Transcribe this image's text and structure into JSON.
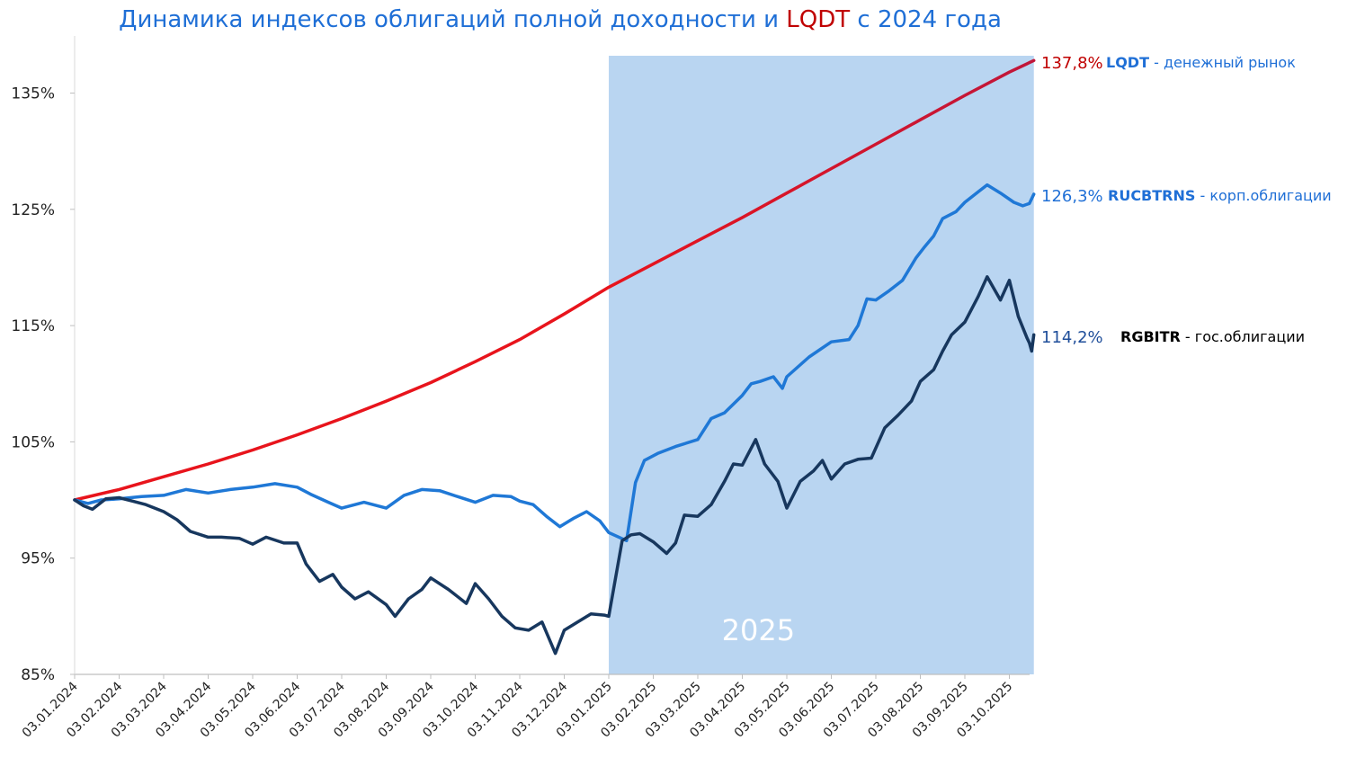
{
  "chart_data": {
    "type": "line",
    "title_parts": [
      {
        "text": "Динамика индексов облигаций полной доходности и ",
        "color": "#1f6fd6"
      },
      {
        "text": "LQDT",
        "color": "#c00000"
      },
      {
        "text": " с 2024 года",
        "color": "#1f6fd6"
      }
    ],
    "y_axis": {
      "min": 85,
      "max": 140,
      "ticks": [
        85,
        95,
        105,
        115,
        125,
        135
      ],
      "tick_labels": [
        "85%",
        "95%",
        "105%",
        "115%",
        "125%",
        "135%"
      ]
    },
    "x_axis": {
      "tick_labels": [
        "03.01.2024",
        "03.02.2024",
        "03.03.2024",
        "03.04.2024",
        "03.05.2024",
        "03.06.2024",
        "03.07.2024",
        "03.08.2024",
        "03.09.2024",
        "03.10.2024",
        "03.11.2024",
        "03.12.2024",
        "03.01.2025",
        "03.02.2025",
        "03.03.2025",
        "03.04.2025",
        "03.05.2025",
        "03.06.2025",
        "03.07.2025",
        "03.08.2025",
        "03.09.2025",
        "03.10.2025"
      ]
    },
    "highlight": {
      "from_index": 12,
      "to_index": 21.55,
      "label": "2025",
      "color": "#b9d5f1"
    },
    "series": [
      {
        "name": "LQDT",
        "color": "#e8141c",
        "color_end": "#c0163a",
        "end_value_label": "137,8%",
        "label_name": "LQDT",
        "label_desc": " - денежный рынок",
        "label_value_color": "#c00000",
        "label_name_color": "#1f6fd6",
        "points": [
          [
            0,
            100
          ],
          [
            1,
            100.9
          ],
          [
            2,
            102.0
          ],
          [
            3,
            103.1
          ],
          [
            4,
            104.3
          ],
          [
            5,
            105.6
          ],
          [
            6,
            107.0
          ],
          [
            7,
            108.5
          ],
          [
            8,
            110.1
          ],
          [
            9,
            111.9
          ],
          [
            10,
            113.8
          ],
          [
            11,
            116.0
          ],
          [
            12,
            118.3
          ],
          [
            13,
            120.3
          ],
          [
            14,
            122.3
          ],
          [
            15,
            124.3
          ],
          [
            16,
            126.4
          ],
          [
            17,
            128.5
          ],
          [
            18,
            130.6
          ],
          [
            19,
            132.7
          ],
          [
            20,
            134.8
          ],
          [
            21,
            136.8
          ],
          [
            21.55,
            137.8
          ]
        ]
      },
      {
        "name": "RUCBTRNS",
        "color": "#1f78d6",
        "end_value_label": "126,3%",
        "label_name": "RUCBTRNS",
        "label_desc": " - корп.облигации",
        "label_value_color": "#1f6fd6",
        "label_name_color": "#1f6fd6",
        "points": [
          [
            0,
            100
          ],
          [
            0.3,
            99.7
          ],
          [
            0.6,
            100.0
          ],
          [
            1,
            100.1
          ],
          [
            1.5,
            100.3
          ],
          [
            2,
            100.4
          ],
          [
            2.5,
            100.9
          ],
          [
            3,
            100.6
          ],
          [
            3.5,
            100.9
          ],
          [
            4,
            101.1
          ],
          [
            4.5,
            101.4
          ],
          [
            5,
            101.1
          ],
          [
            5.3,
            100.5
          ],
          [
            5.7,
            99.8
          ],
          [
            6,
            99.3
          ],
          [
            6.5,
            99.8
          ],
          [
            7,
            99.3
          ],
          [
            7.4,
            100.4
          ],
          [
            7.8,
            100.9
          ],
          [
            8.2,
            100.8
          ],
          [
            8.6,
            100.3
          ],
          [
            9,
            99.8
          ],
          [
            9.4,
            100.4
          ],
          [
            9.8,
            100.3
          ],
          [
            10,
            99.9
          ],
          [
            10.3,
            99.6
          ],
          [
            10.6,
            98.6
          ],
          [
            10.9,
            97.7
          ],
          [
            11.2,
            98.4
          ],
          [
            11.5,
            99.0
          ],
          [
            11.8,
            98.2
          ],
          [
            12,
            97.2
          ],
          [
            12.4,
            96.5
          ],
          [
            12.6,
            101.5
          ],
          [
            12.8,
            103.4
          ],
          [
            13.1,
            104.0
          ],
          [
            13.5,
            104.6
          ],
          [
            14,
            105.2
          ],
          [
            14.3,
            107.0
          ],
          [
            14.6,
            107.5
          ],
          [
            15,
            109.0
          ],
          [
            15.2,
            110.0
          ],
          [
            15.4,
            110.2
          ],
          [
            15.7,
            110.6
          ],
          [
            15.9,
            109.6
          ],
          [
            16,
            110.6
          ],
          [
            16.5,
            112.3
          ],
          [
            17,
            113.6
          ],
          [
            17.4,
            113.8
          ],
          [
            17.6,
            115.0
          ],
          [
            17.8,
            117.3
          ],
          [
            18,
            117.2
          ],
          [
            18.3,
            118.0
          ],
          [
            18.6,
            118.9
          ],
          [
            18.9,
            120.8
          ],
          [
            19.1,
            121.8
          ],
          [
            19.3,
            122.7
          ],
          [
            19.5,
            124.2
          ],
          [
            19.8,
            124.8
          ],
          [
            20,
            125.6
          ],
          [
            20.3,
            126.5
          ],
          [
            20.5,
            127.1
          ],
          [
            20.8,
            126.4
          ],
          [
            21.1,
            125.6
          ],
          [
            21.3,
            125.3
          ],
          [
            21.45,
            125.5
          ],
          [
            21.55,
            126.3
          ]
        ]
      },
      {
        "name": "RGBITR",
        "color": "#17375e",
        "end_value_label": "114,2%",
        "label_name": "RGBITR",
        "label_desc": " - гос.облигации",
        "label_value_color": "#1f4e9a",
        "label_name_color": "#000000",
        "points": [
          [
            0,
            100
          ],
          [
            0.2,
            99.5
          ],
          [
            0.4,
            99.2
          ],
          [
            0.7,
            100.1
          ],
          [
            1,
            100.2
          ],
          [
            1.3,
            99.9
          ],
          [
            1.6,
            99.6
          ],
          [
            2,
            99.0
          ],
          [
            2.3,
            98.3
          ],
          [
            2.6,
            97.3
          ],
          [
            3,
            96.8
          ],
          [
            3.3,
            96.8
          ],
          [
            3.7,
            96.7
          ],
          [
            4,
            96.2
          ],
          [
            4.3,
            96.8
          ],
          [
            4.7,
            96.3
          ],
          [
            5,
            96.3
          ],
          [
            5.2,
            94.5
          ],
          [
            5.5,
            93.0
          ],
          [
            5.8,
            93.6
          ],
          [
            6,
            92.5
          ],
          [
            6.3,
            91.5
          ],
          [
            6.6,
            92.1
          ],
          [
            7,
            91.0
          ],
          [
            7.2,
            90.0
          ],
          [
            7.5,
            91.5
          ],
          [
            7.8,
            92.3
          ],
          [
            8,
            93.3
          ],
          [
            8.4,
            92.3
          ],
          [
            8.8,
            91.1
          ],
          [
            9,
            92.8
          ],
          [
            9.3,
            91.5
          ],
          [
            9.6,
            90.0
          ],
          [
            9.9,
            89.0
          ],
          [
            10.2,
            88.8
          ],
          [
            10.5,
            89.5
          ],
          [
            10.8,
            86.8
          ],
          [
            11,
            88.8
          ],
          [
            11.3,
            89.5
          ],
          [
            11.6,
            90.2
          ],
          [
            11.9,
            90.1
          ],
          [
            12,
            90.0
          ],
          [
            12.3,
            96.5
          ],
          [
            12.5,
            97.0
          ],
          [
            12.7,
            97.1
          ],
          [
            13,
            96.4
          ],
          [
            13.3,
            95.4
          ],
          [
            13.5,
            96.3
          ],
          [
            13.7,
            98.7
          ],
          [
            14,
            98.6
          ],
          [
            14.3,
            99.6
          ],
          [
            14.6,
            101.6
          ],
          [
            14.8,
            103.1
          ],
          [
            15,
            103.0
          ],
          [
            15.3,
            105.2
          ],
          [
            15.5,
            103.1
          ],
          [
            15.8,
            101.6
          ],
          [
            16,
            99.3
          ],
          [
            16.3,
            101.6
          ],
          [
            16.6,
            102.5
          ],
          [
            16.8,
            103.4
          ],
          [
            17,
            101.8
          ],
          [
            17.3,
            103.1
          ],
          [
            17.6,
            103.5
          ],
          [
            17.9,
            103.6
          ],
          [
            18.2,
            106.2
          ],
          [
            18.5,
            107.3
          ],
          [
            18.8,
            108.5
          ],
          [
            19,
            110.2
          ],
          [
            19.3,
            111.2
          ],
          [
            19.5,
            112.8
          ],
          [
            19.7,
            114.2
          ],
          [
            20,
            115.3
          ],
          [
            20.3,
            117.5
          ],
          [
            20.5,
            119.2
          ],
          [
            20.8,
            117.2
          ],
          [
            21,
            118.9
          ],
          [
            21.2,
            115.8
          ],
          [
            21.4,
            113.9
          ],
          [
            21.45,
            113.5
          ],
          [
            21.5,
            112.8
          ],
          [
            21.55,
            114.2
          ]
        ]
      }
    ]
  }
}
